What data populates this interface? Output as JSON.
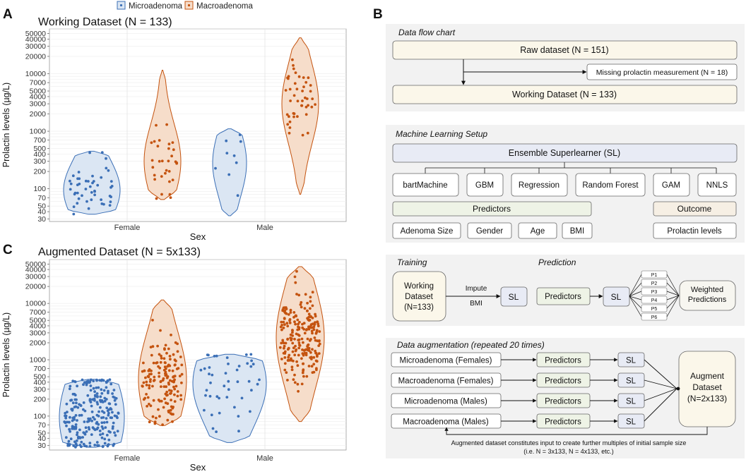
{
  "legend": {
    "items": [
      {
        "label": "Microadenoma",
        "color": "#3b6fb6",
        "fill": "#dbe6f3"
      },
      {
        "label": "Macroadenoma",
        "color": "#c4530f",
        "fill": "#f6ddca"
      }
    ]
  },
  "panel_labels": {
    "a": "A",
    "b": "B",
    "c": "C"
  },
  "chart_data": [
    {
      "type": "violin",
      "title": "Working Dataset (N = 133)",
      "xlabel": "Sex",
      "ylabel": "Prolactin levels (µg/L)",
      "yscale": "log",
      "ylim": [
        27,
        60000
      ],
      "yticks": [
        30,
        40,
        50,
        70,
        100,
        200,
        300,
        400,
        500,
        700,
        1000,
        2000,
        3000,
        4000,
        5000,
        7000,
        10000,
        20000,
        30000,
        40000,
        50000
      ],
      "ytick_labels": [
        "30",
        "40",
        "50",
        "70",
        "100",
        "200",
        "300",
        "400",
        "500",
        "700",
        "1000",
        "2000",
        "3000",
        "4000",
        "5000",
        "7000",
        "10000",
        "20000",
        "30000",
        "40000",
        "50000"
      ],
      "categories": [
        "Female",
        "Male"
      ],
      "series": [
        {
          "name": "Microadenoma",
          "groups": [
            {
              "category": "Female",
              "n": 48,
              "min": 36,
              "max": 450,
              "median": 95,
              "spread": 0.55
            },
            {
              "category": "Male",
              "n": 9,
              "min": 34,
              "max": 1100,
              "median": 280,
              "spread": 0.6
            }
          ]
        },
        {
          "name": "Macroadenoma",
          "groups": [
            {
              "category": "Female",
              "n": 31,
              "min": 65,
              "max": 11500,
              "median": 300,
              "spread": 0.65
            },
            {
              "category": "Male",
              "n": 45,
              "min": 80,
              "max": 42000,
              "median": 3000,
              "spread": 0.7
            }
          ]
        }
      ]
    },
    {
      "type": "violin",
      "title": "Augmented Dataset (N = 5x133)",
      "xlabel": "Sex",
      "ylabel": "Prolactin levels (µg/L)",
      "yscale": "log",
      "ylim": [
        25,
        60000
      ],
      "yticks": [
        30,
        40,
        50,
        70,
        100,
        200,
        300,
        400,
        500,
        700,
        1000,
        2000,
        3000,
        4000,
        5000,
        7000,
        10000,
        20000,
        30000,
        40000,
        50000
      ],
      "ytick_labels": [
        "30",
        "40",
        "50",
        "70",
        "100",
        "200",
        "300",
        "400",
        "500",
        "700",
        "1000",
        "2000",
        "3000",
        "4000",
        "5000",
        "7000",
        "10000",
        "20000",
        "30000",
        "40000",
        "50000"
      ],
      "categories": [
        "Female",
        "Male"
      ],
      "series": [
        {
          "name": "Microadenoma",
          "groups": [
            {
              "category": "Female",
              "n": 240,
              "min": 28,
              "max": 450,
              "median": 95,
              "spread": 0.9
            },
            {
              "category": "Male",
              "n": 45,
              "min": 34,
              "max": 1250,
              "median": 380,
              "spread": 0.8
            }
          ]
        },
        {
          "name": "Macroadenoma",
          "groups": [
            {
              "category": "Female",
              "n": 155,
              "min": 68,
              "max": 11500,
              "median": 450,
              "spread": 0.85
            },
            {
              "category": "Male",
              "n": 225,
              "min": 80,
              "max": 45000,
              "median": 2500,
              "spread": 0.9
            }
          ]
        }
      ]
    }
  ],
  "flow": {
    "data_flow": {
      "title": "Data flow chart",
      "raw": "Raw dataset (N = 151)",
      "missing": "Missing prolactin measurement (N = 18)",
      "working": "Working Dataset (N = 133)"
    },
    "ml_setup": {
      "title": "Machine Learning Setup",
      "ensemble": "Ensemble Superlearner (SL)",
      "learners": [
        "bartMachine",
        "GBM",
        "Regression",
        "Random Forest",
        "GAM",
        "NNLS"
      ],
      "predictors_label": "Predictors",
      "predictors": [
        "Adenoma Size",
        "Gender",
        "Age",
        "BMI"
      ],
      "outcome_label": "Outcome",
      "outcome": "Prolactin levels"
    },
    "training": {
      "title": "Training",
      "prediction_title": "Prediction",
      "dataset": [
        "Working",
        "Dataset",
        "(N=133)"
      ],
      "impute": "Impute",
      "bmi": "BMI",
      "sl": "SL",
      "predictors": "Predictors",
      "sl2": "SL",
      "p_labels": [
        "P1",
        "P2",
        "P3",
        "P4",
        "P5",
        "P6"
      ],
      "weighted": [
        "Weighted",
        "Predictions"
      ]
    },
    "augmentation": {
      "title": "Data augmentation (repeated 20 times)",
      "rows": [
        "Microadenoma (Females)",
        "Macroadenoma (Females)",
        "Microadenoma (Males)",
        "Macroadenoma (Males)"
      ],
      "predictors": "Predictors",
      "sl": "SL",
      "augment": [
        "Augment",
        "Dataset",
        "(N=2x133)"
      ],
      "note": [
        "Augmented dataset constitutes input to create further multiples of initial sample size",
        "(i.e. N = 3x133, N = 4x133, etc.)"
      ]
    }
  }
}
